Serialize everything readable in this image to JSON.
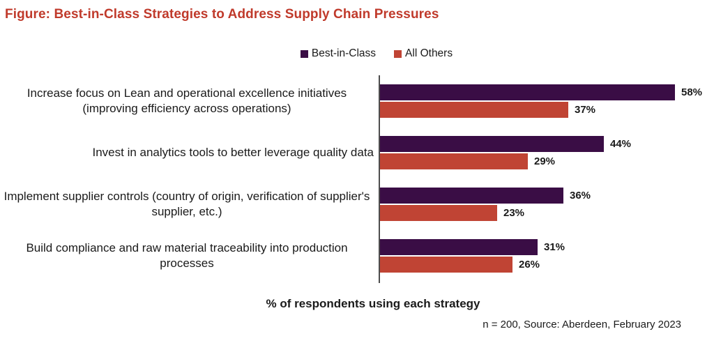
{
  "title": "Figure: Best-in-Class Strategies to Address Supply Chain Pressures",
  "colors": {
    "title": "#C03A2B",
    "best_in_class": "#3A0D45",
    "all_others": "#C04434",
    "axis": "#4D4D4D"
  },
  "footer": {
    "source": "n = 200, Source: Aberdeen, February 2023"
  },
  "chart_data": {
    "type": "bar",
    "orientation": "horizontal",
    "title": "Figure: Best-in-Class Strategies to Address Supply Chain Pressures",
    "xlabel": "% of respondents using each strategy",
    "ylabel": "",
    "xlim": [
      0,
      63
    ],
    "grid": false,
    "legend_position": "top",
    "categories": [
      "Increase focus on Lean and operational excellence initiatives (improving efficiency across operations)",
      "Invest in analytics tools to better leverage quality data",
      "Implement supplier controls (country of origin, verification of supplier's supplier, etc.)",
      "Build compliance and raw material traceability into production processes"
    ],
    "series": [
      {
        "name": "Best-in-Class",
        "color": "#3A0D45",
        "values": [
          58,
          44,
          36,
          31
        ],
        "labels": [
          "58%",
          "44%",
          "36%",
          "31%"
        ]
      },
      {
        "name": "All Others",
        "color": "#C04434",
        "values": [
          37,
          29,
          23,
          26
        ],
        "labels": [
          "37%",
          "29%",
          "23%",
          "26%"
        ]
      }
    ]
  }
}
